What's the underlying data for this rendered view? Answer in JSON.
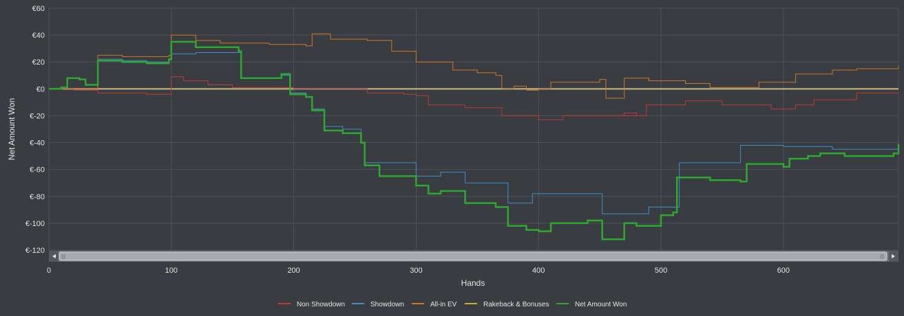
{
  "chart_data": {
    "type": "line",
    "title": "",
    "xlabel": "Hands",
    "ylabel": "Net Amount Won",
    "xlim": [
      0,
      694
    ],
    "ylim": [
      -120,
      60
    ],
    "x_ticks": [
      0,
      100,
      200,
      300,
      400,
      500,
      600
    ],
    "y_ticks": [
      60,
      40,
      20,
      0,
      -20,
      -40,
      -60,
      -80,
      -100,
      -120
    ],
    "y_tick_labels": [
      "€60",
      "€40",
      "€20",
      "€0",
      "€-20",
      "€-40",
      "€-60",
      "€-80",
      "€-100",
      "€-120"
    ],
    "grid": true,
    "legend_position": "bottom-center",
    "scrollbar": true,
    "series": [
      {
        "name": "Non Showdown",
        "color": "#c0393b",
        "points": [
          [
            0,
            0
          ],
          [
            20,
            -1
          ],
          [
            40,
            -3
          ],
          [
            60,
            -3
          ],
          [
            80,
            -4
          ],
          [
            98,
            -4
          ],
          [
            100,
            9
          ],
          [
            110,
            6
          ],
          [
            130,
            3
          ],
          [
            150,
            1
          ],
          [
            180,
            1
          ],
          [
            200,
            0
          ],
          [
            230,
            0
          ],
          [
            260,
            -3
          ],
          [
            290,
            -4
          ],
          [
            300,
            -5
          ],
          [
            310,
            -12
          ],
          [
            340,
            -14
          ],
          [
            370,
            -20
          ],
          [
            400,
            -23
          ],
          [
            420,
            -20
          ],
          [
            450,
            -20
          ],
          [
            470,
            -20
          ],
          [
            480,
            -18
          ],
          [
            470,
            -20
          ],
          [
            488,
            -12
          ],
          [
            520,
            -9
          ],
          [
            550,
            -12
          ],
          [
            590,
            -15
          ],
          [
            610,
            -12
          ],
          [
            625,
            -8
          ],
          [
            660,
            -3
          ],
          [
            694,
            -2
          ]
        ]
      },
      {
        "name": "Showdown",
        "color": "#3f8fcf",
        "points": [
          [
            0,
            0
          ],
          [
            10,
            1
          ],
          [
            15,
            8
          ],
          [
            25,
            7
          ],
          [
            30,
            3
          ],
          [
            40,
            22
          ],
          [
            60,
            21
          ],
          [
            80,
            20
          ],
          [
            98,
            22
          ],
          [
            100,
            26
          ],
          [
            120,
            27
          ],
          [
            155,
            27
          ],
          [
            157,
            8
          ],
          [
            190,
            10
          ],
          [
            197,
            -3
          ],
          [
            210,
            -6
          ],
          [
            215,
            -15
          ],
          [
            225,
            -28
          ],
          [
            240,
            -30
          ],
          [
            255,
            -40
          ],
          [
            258,
            -55
          ],
          [
            300,
            -65
          ],
          [
            320,
            -62
          ],
          [
            340,
            -70
          ],
          [
            370,
            -70
          ],
          [
            375,
            -85
          ],
          [
            395,
            -78
          ],
          [
            430,
            -78
          ],
          [
            450,
            -78
          ],
          [
            452,
            -93
          ],
          [
            490,
            -88
          ],
          [
            515,
            -55
          ],
          [
            560,
            -55
          ],
          [
            565,
            -42
          ],
          [
            600,
            -43
          ],
          [
            640,
            -45
          ],
          [
            694,
            -48
          ]
        ]
      },
      {
        "name": "All-in EV",
        "color": "#d0782a",
        "points": [
          [
            0,
            0
          ],
          [
            40,
            25
          ],
          [
            60,
            24
          ],
          [
            80,
            24
          ],
          [
            98,
            25
          ],
          [
            100,
            40
          ],
          [
            120,
            36
          ],
          [
            140,
            34
          ],
          [
            180,
            33
          ],
          [
            210,
            32
          ],
          [
            215,
            41
          ],
          [
            230,
            37
          ],
          [
            260,
            36
          ],
          [
            280,
            28
          ],
          [
            300,
            20
          ],
          [
            330,
            14
          ],
          [
            350,
            12
          ],
          [
            365,
            10
          ],
          [
            370,
            0
          ],
          [
            380,
            2
          ],
          [
            390,
            -1
          ],
          [
            400,
            0
          ],
          [
            410,
            5
          ],
          [
            450,
            7
          ],
          [
            455,
            -7
          ],
          [
            470,
            8
          ],
          [
            490,
            6
          ],
          [
            520,
            4
          ],
          [
            540,
            1
          ],
          [
            560,
            1
          ],
          [
            580,
            5
          ],
          [
            600,
            5
          ],
          [
            610,
            11
          ],
          [
            640,
            14
          ],
          [
            660,
            15
          ],
          [
            694,
            17
          ]
        ]
      },
      {
        "name": "Rakeback & Bonuses",
        "color": "#c9b23a",
        "points": [
          [
            0,
            0
          ],
          [
            694,
            0
          ]
        ]
      },
      {
        "name": "Net Amount Won",
        "color": "#2fa832",
        "points": [
          [
            0,
            0
          ],
          [
            10,
            1
          ],
          [
            15,
            8
          ],
          [
            25,
            7
          ],
          [
            30,
            3
          ],
          [
            40,
            21
          ],
          [
            60,
            20
          ],
          [
            80,
            19
          ],
          [
            98,
            22
          ],
          [
            100,
            35
          ],
          [
            120,
            31
          ],
          [
            155,
            28
          ],
          [
            157,
            8
          ],
          [
            190,
            11
          ],
          [
            197,
            -4
          ],
          [
            210,
            -6
          ],
          [
            215,
            -16
          ],
          [
            225,
            -31
          ],
          [
            240,
            -33
          ],
          [
            255,
            -40
          ],
          [
            258,
            -57
          ],
          [
            270,
            -65
          ],
          [
            300,
            -72
          ],
          [
            310,
            -78
          ],
          [
            320,
            -76
          ],
          [
            340,
            -85
          ],
          [
            365,
            -88
          ],
          [
            375,
            -102
          ],
          [
            390,
            -105
          ],
          [
            400,
            -106
          ],
          [
            410,
            -100
          ],
          [
            440,
            -98
          ],
          [
            450,
            -98
          ],
          [
            452,
            -112
          ],
          [
            470,
            -100
          ],
          [
            480,
            -102
          ],
          [
            495,
            -102
          ],
          [
            500,
            -94
          ],
          [
            510,
            -92
          ],
          [
            513,
            -66
          ],
          [
            540,
            -68
          ],
          [
            565,
            -69
          ],
          [
            570,
            -56
          ],
          [
            600,
            -58
          ],
          [
            605,
            -52
          ],
          [
            620,
            -50
          ],
          [
            630,
            -48
          ],
          [
            650,
            -50
          ],
          [
            690,
            -48
          ],
          [
            694,
            -41
          ]
        ]
      }
    ]
  }
}
